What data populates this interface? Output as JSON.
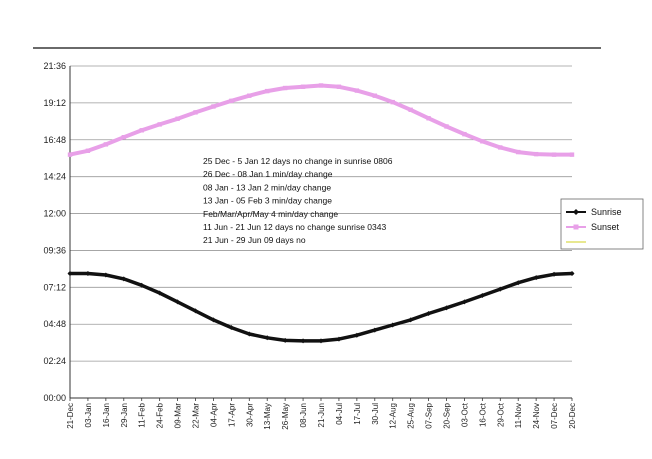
{
  "chart_data": {
    "type": "line",
    "title": "",
    "xlabel": "",
    "ylabel": "",
    "y_axis_unit": "time of day (HH:MM)",
    "ylim": [
      "00:00",
      "21:36"
    ],
    "y_ticks": [
      "00:00",
      "02:24",
      "04:48",
      "07:12",
      "09:36",
      "12:00",
      "14:24",
      "16:48",
      "19:12",
      "21:36"
    ],
    "grid": true,
    "legend_position": "right",
    "x_ticks": [
      "21-Dec",
      "03-Jan",
      "16-Jan",
      "29-Jan",
      "11-Feb",
      "24-Feb",
      "09-Mar",
      "22-Mar",
      "04-Apr",
      "17-Apr",
      "30-Apr",
      "13-May",
      "26-May",
      "08-Jun",
      "21-Jun",
      "04-Jul",
      "17-Jul",
      "30-Jul",
      "12-Aug",
      "25-Aug",
      "07-Sep",
      "20-Sep",
      "03-Oct",
      "16-Oct",
      "29-Oct",
      "11-Nov",
      "24-Nov",
      "07-Dec",
      "20-Dec"
    ],
    "series": [
      {
        "name": "Sunrise",
        "color": "#111111",
        "marker": "diamond",
        "x": [
          "21-Dec",
          "03-Jan",
          "16-Jan",
          "29-Jan",
          "11-Feb",
          "24-Feb",
          "09-Mar",
          "22-Mar",
          "04-Apr",
          "17-Apr",
          "30-Apr",
          "13-May",
          "26-May",
          "08-Jun",
          "21-Jun",
          "04-Jul",
          "17-Jul",
          "30-Jul",
          "12-Aug",
          "25-Aug",
          "07-Sep",
          "20-Sep",
          "03-Oct",
          "16-Oct",
          "29-Oct",
          "11-Nov",
          "24-Nov",
          "07-Dec",
          "20-Dec"
        ],
        "y": [
          "08:06",
          "08:06",
          "08:00",
          "07:45",
          "07:20",
          "06:50",
          "06:15",
          "05:40",
          "05:05",
          "04:35",
          "04:10",
          "03:55",
          "03:45",
          "03:43",
          "03:43",
          "03:50",
          "04:05",
          "04:25",
          "04:45",
          "05:05",
          "05:30",
          "05:52",
          "06:15",
          "06:40",
          "07:05",
          "07:30",
          "07:50",
          "08:03",
          "08:06"
        ]
      },
      {
        "name": "Sunset",
        "color": "#e8a0e8",
        "marker": "square",
        "x": [
          "21-Dec",
          "03-Jan",
          "16-Jan",
          "29-Jan",
          "11-Feb",
          "24-Feb",
          "09-Mar",
          "22-Mar",
          "04-Apr",
          "17-Apr",
          "30-Apr",
          "13-May",
          "26-May",
          "08-Jun",
          "21-Jun",
          "04-Jul",
          "17-Jul",
          "30-Jul",
          "12-Aug",
          "25-Aug",
          "07-Sep",
          "20-Sep",
          "03-Oct",
          "16-Oct",
          "29-Oct",
          "11-Nov",
          "24-Nov",
          "07-Dec",
          "20-Dec"
        ],
        "y": [
          "15:50",
          "16:05",
          "16:30",
          "16:58",
          "17:25",
          "17:48",
          "18:10",
          "18:35",
          "18:58",
          "19:20",
          "19:40",
          "19:58",
          "20:10",
          "20:15",
          "20:20",
          "20:15",
          "20:00",
          "19:40",
          "19:15",
          "18:45",
          "18:12",
          "17:40",
          "17:10",
          "16:42",
          "16:18",
          "16:00",
          "15:52",
          "15:50",
          "15:50"
        ]
      },
      {
        "name": "",
        "color": "#e8e890",
        "marker": "none",
        "x": [],
        "y": []
      }
    ],
    "annotations": [
      "25 Dec - 5 Jan 12 days no change in sunrise 0806",
      "26 Dec - 08 Jan 1 min/day change",
      "08 Jan - 13 Jan 2 min/day change",
      "13 Jan - 05 Feb 3 min/day change",
      "Feb/Mar/Apr/May 4 min/day change",
      "11 Jun - 21 Jun 12 days no change sunrise 0343",
      "21 Jun - 29 Jun 09 days no"
    ]
  }
}
